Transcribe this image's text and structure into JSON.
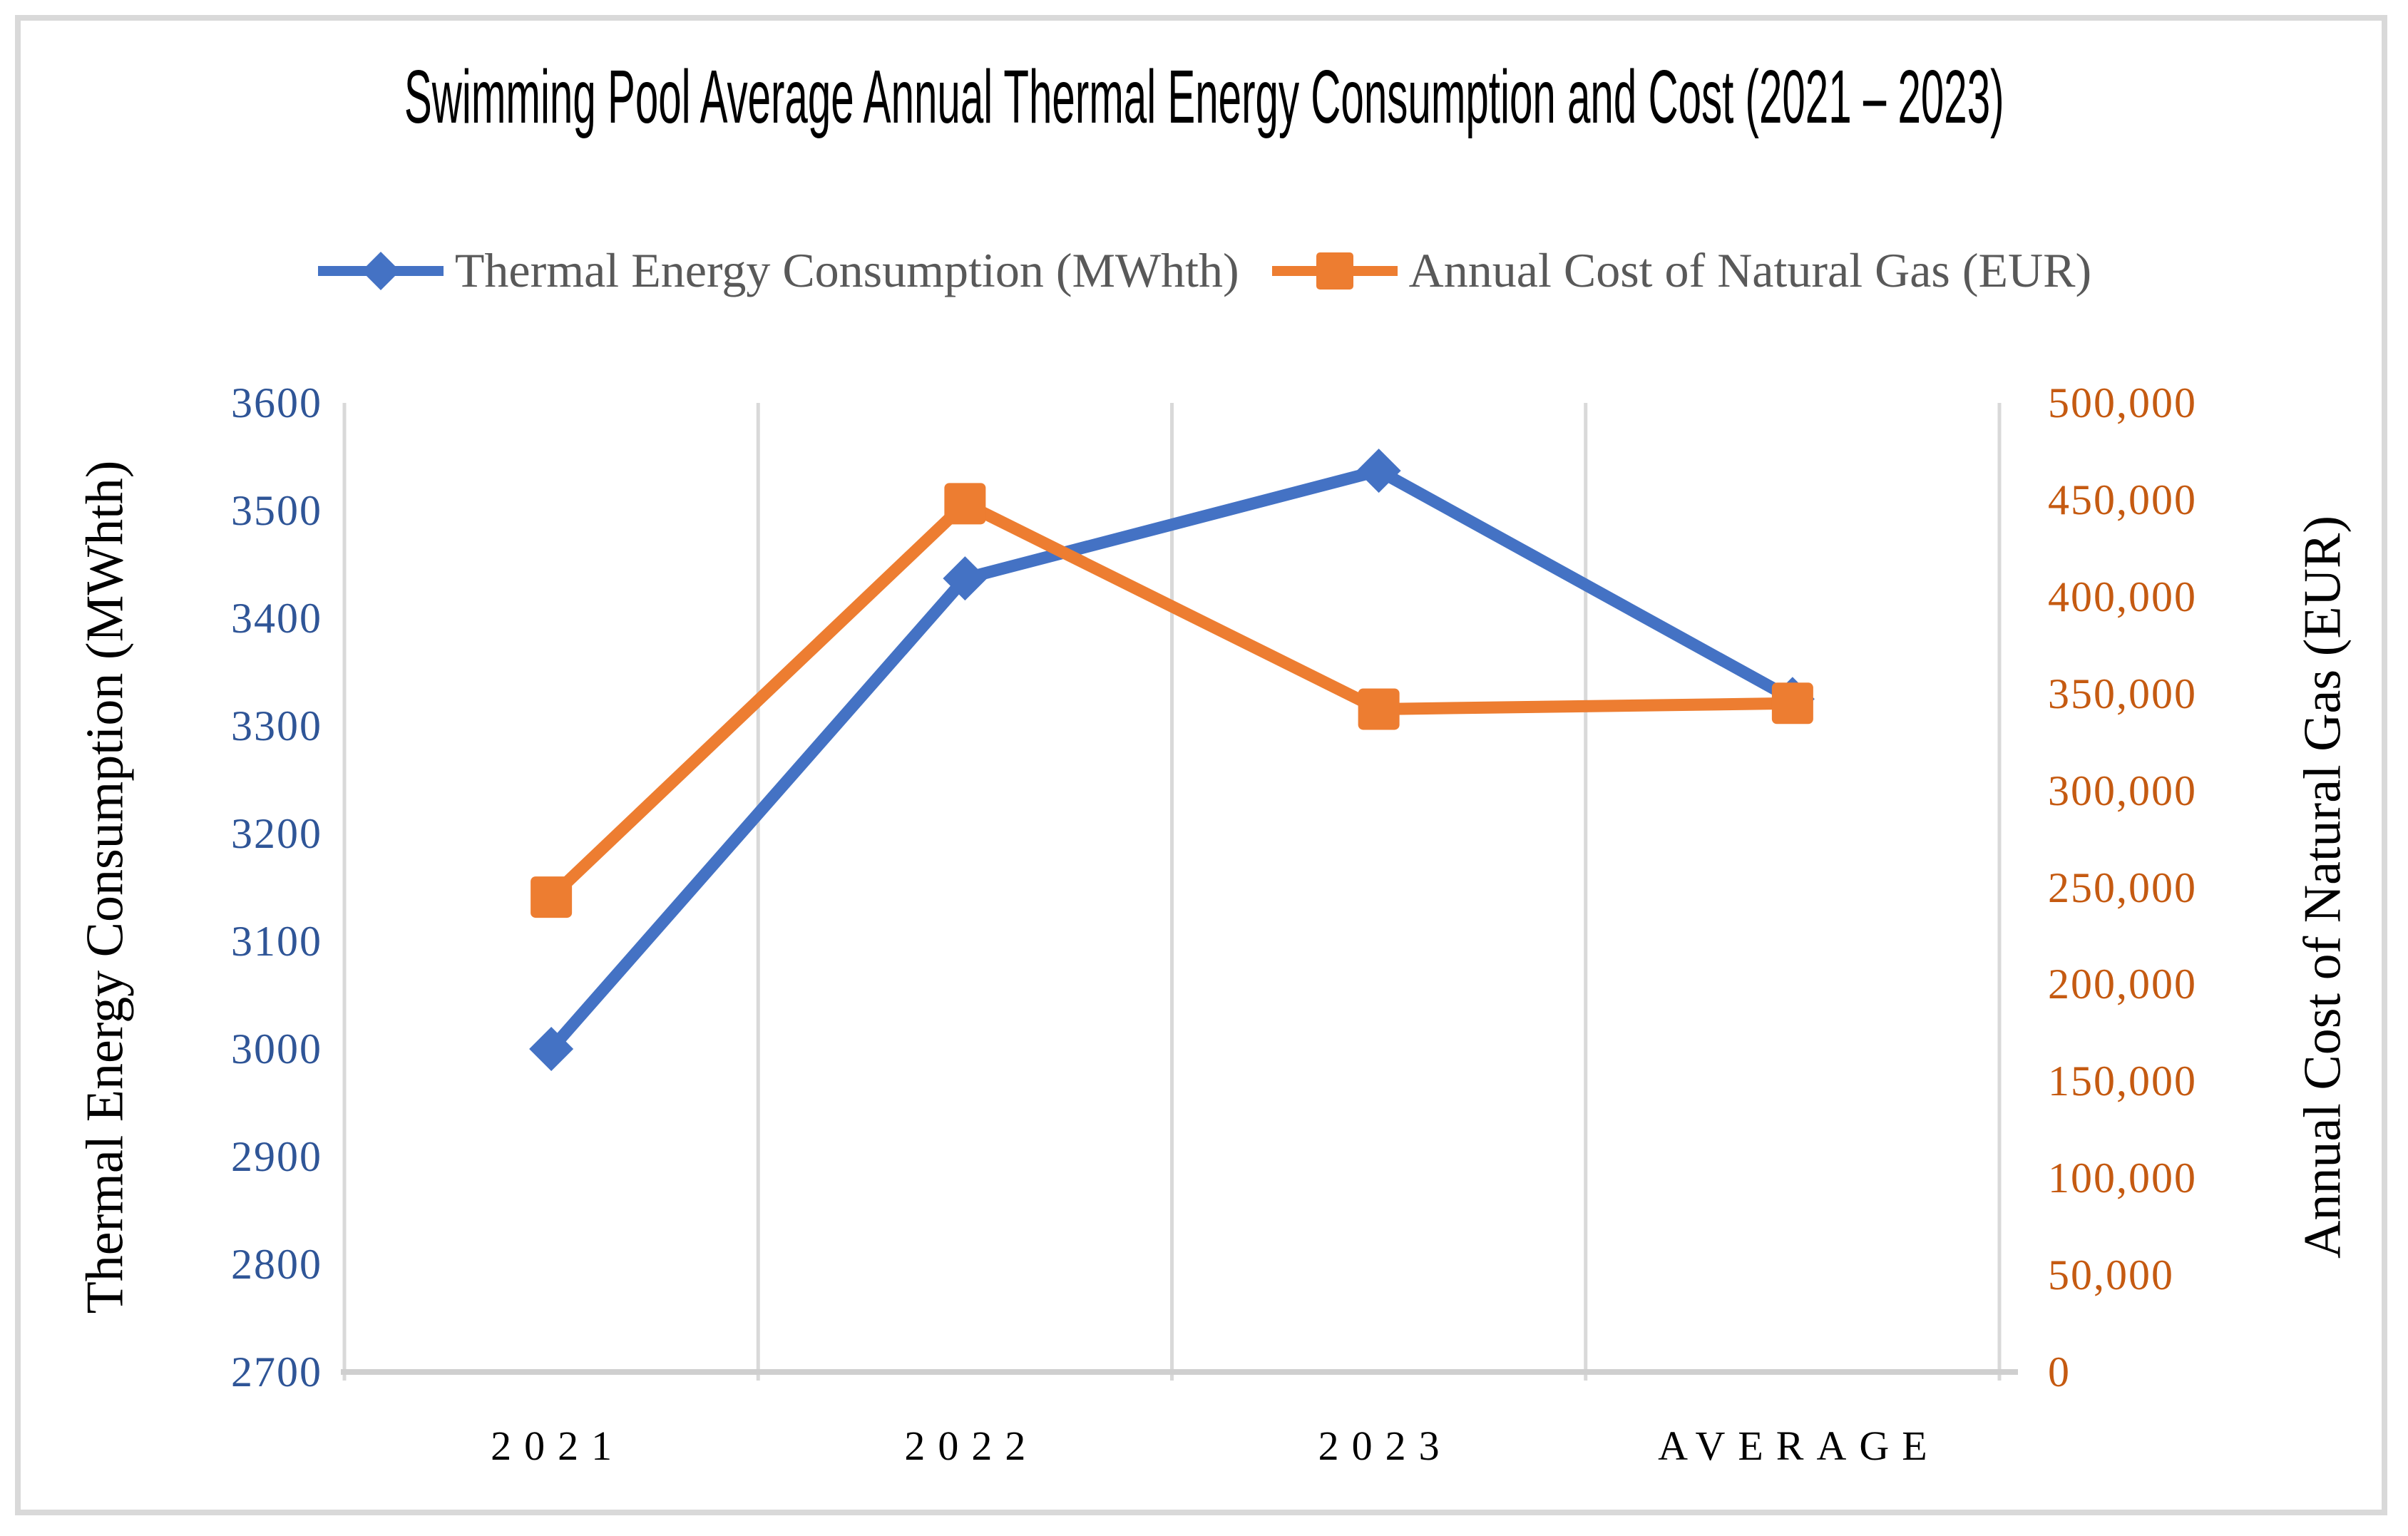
{
  "chart": {
    "title": "Swimming Pool Average Annual Thermal Energy Consumption and Cost (2021 – 2023)"
  },
  "legend": {
    "items": [
      {
        "label": "Thermal Energy Consumption (MWhth)",
        "marker": "diamond",
        "color": "#4472C4"
      },
      {
        "label": "Annual Cost of Natural Gas (EUR)",
        "marker": "square",
        "color": "#ED7D31"
      }
    ]
  },
  "left_axis": {
    "title": "Thermal Energy Consumption (MWhth)",
    "tick_labels": [
      "3600",
      "3500",
      "3400",
      "3300",
      "3200",
      "3100",
      "3000",
      "2900",
      "2800",
      "2700"
    ],
    "label_color": "#2F5597",
    "min": 2700,
    "max": 3600
  },
  "right_axis": {
    "title": "Annual Cost of Natural Gas (EUR)",
    "tick_labels": [
      "500,000",
      "450,000",
      "400,000",
      "350,000",
      "300,000",
      "250,000",
      "200,000",
      "150,000",
      "100,000",
      "50,000",
      "0"
    ],
    "label_color": "#C55A11",
    "min": 0,
    "max": 500000
  },
  "x_axis": {
    "categories": [
      "2021",
      "2022",
      "2023",
      "AVERAGE"
    ]
  },
  "chart_data": {
    "type": "line",
    "categories": [
      "2021",
      "2022",
      "2023",
      "AVERAGE"
    ],
    "series": [
      {
        "name": "Thermal Energy Consumption (MWhth)",
        "axis": "left",
        "color": "#4472C4",
        "marker": "diamond",
        "values": [
          3000,
          3437,
          3537,
          3325
        ]
      },
      {
        "name": "Annual Cost of Natural Gas (EUR)",
        "axis": "right",
        "color": "#ED7D31",
        "marker": "square",
        "values": [
          245000,
          448000,
          342000,
          345000
        ]
      }
    ],
    "title": "Swimming Pool Average Annual Thermal Energy Consumption and Cost (2021 – 2023)",
    "left_ylim": [
      2700,
      3600
    ],
    "left_tick_step": 100,
    "right_ylim": [
      0,
      500000
    ],
    "right_tick_step": 50000,
    "gridlines": "vertical-only",
    "legend_position": "top"
  },
  "colors": {
    "gridline": "#D9D9D9",
    "axis_line": "#CFCFCF",
    "legend_text": "#595959",
    "border": "#D9D9D9",
    "series_blue": "#4472C4",
    "series_orange": "#ED7D31"
  }
}
